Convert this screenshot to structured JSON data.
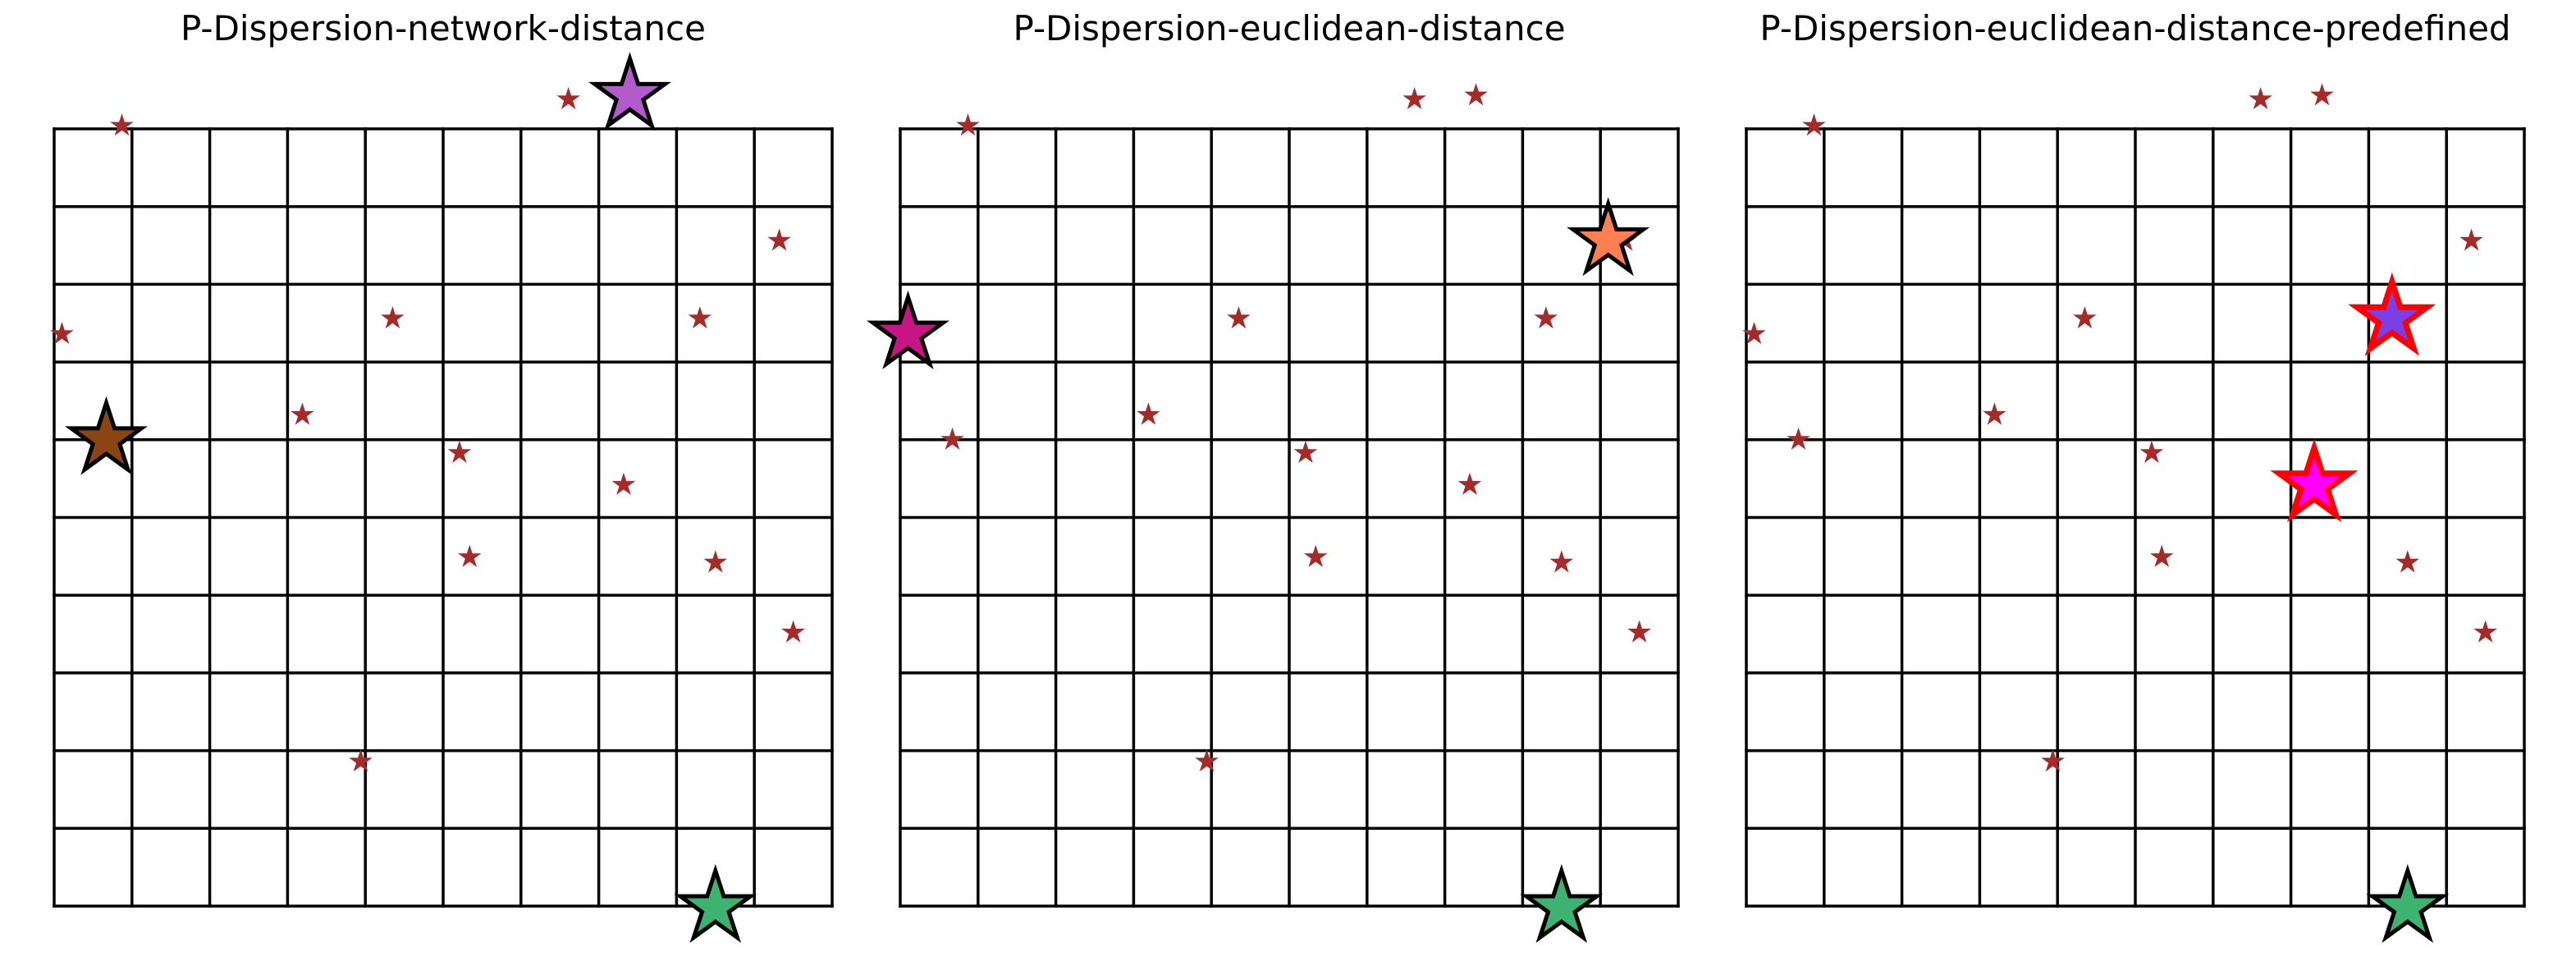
{
  "chart_data": [
    {
      "type": "scatter",
      "title": "P-Dispersion-network-distance",
      "xlim": [
        0,
        10
      ],
      "ylim": [
        0,
        10
      ],
      "grid": true,
      "series": [
        {
          "marker": "small-star",
          "color": "#a52a2a",
          "points": [
            [
              0.87,
              10.04
            ],
            [
              6.61,
              10.38
            ],
            [
              9.32,
              8.56
            ],
            [
              0.1,
              7.36
            ],
            [
              4.35,
              7.56
            ],
            [
              8.3,
              7.56
            ],
            [
              3.19,
              6.32
            ],
            [
              5.21,
              5.83
            ],
            [
              7.32,
              5.42
            ],
            [
              5.34,
              4.49
            ],
            [
              8.5,
              4.42
            ],
            [
              9.5,
              3.52
            ],
            [
              3.94,
              1.86
            ]
          ]
        },
        {
          "marker": "large-star",
          "points": [
            {
              "x": 7.4,
              "y": 10.43,
              "color": "#b35bcc",
              "edge": "#000000"
            },
            {
              "x": 0.67,
              "y": 6.0,
              "color": "#8b4513",
              "edge": "#000000"
            },
            {
              "x": 8.5,
              "y": -0.02,
              "color": "#3cb371",
              "edge": "#000000"
            }
          ]
        }
      ]
    },
    {
      "type": "scatter",
      "title": "P-Dispersion-euclidean-distance",
      "xlim": [
        0,
        10
      ],
      "ylim": [
        0,
        10
      ],
      "grid": true,
      "series": [
        {
          "marker": "small-star",
          "color": "#a52a2a",
          "points": [
            [
              0.87,
              10.04
            ],
            [
              6.61,
              10.38
            ],
            [
              7.4,
              10.43
            ],
            [
              9.32,
              8.56
            ],
            [
              0.1,
              7.36
            ],
            [
              4.35,
              7.56
            ],
            [
              8.3,
              7.56
            ],
            [
              3.19,
              6.32
            ],
            [
              0.67,
              6.0
            ],
            [
              5.21,
              5.83
            ],
            [
              7.32,
              5.42
            ],
            [
              5.34,
              4.49
            ],
            [
              8.5,
              4.42
            ],
            [
              9.5,
              3.52
            ],
            [
              3.94,
              1.86
            ]
          ]
        },
        {
          "marker": "large-star",
          "points": [
            {
              "x": 9.1,
              "y": 8.56,
              "color": "#ff7f50",
              "edge": "#000000"
            },
            {
              "x": 0.1,
              "y": 7.36,
              "color": "#c71585",
              "edge": "#000000"
            },
            {
              "x": 8.5,
              "y": -0.02,
              "color": "#3cb371",
              "edge": "#000000"
            }
          ]
        }
      ]
    },
    {
      "type": "scatter",
      "title": "P-Dispersion-euclidean-distance-predefined",
      "xlim": [
        0,
        10
      ],
      "ylim": [
        0,
        10
      ],
      "grid": true,
      "series": [
        {
          "marker": "small-star",
          "color": "#a52a2a",
          "points": [
            [
              0.87,
              10.04
            ],
            [
              6.61,
              10.38
            ],
            [
              7.4,
              10.43
            ],
            [
              9.32,
              8.56
            ],
            [
              0.1,
              7.36
            ],
            [
              4.35,
              7.56
            ],
            [
              3.19,
              6.32
            ],
            [
              0.67,
              6.0
            ],
            [
              5.21,
              5.83
            ],
            [
              5.34,
              4.49
            ],
            [
              8.5,
              4.42
            ],
            [
              9.5,
              3.52
            ],
            [
              3.94,
              1.86
            ]
          ]
        },
        {
          "marker": "large-star",
          "points": [
            {
              "x": 8.3,
              "y": 7.56,
              "color": "#7b3fe4",
              "edge": "#ff0000"
            },
            {
              "x": 7.3,
              "y": 5.42,
              "color": "#ff00ff",
              "edge": "#ff0000"
            },
            {
              "x": 8.5,
              "y": -0.02,
              "color": "#3cb371",
              "edge": "#000000"
            }
          ]
        }
      ]
    }
  ]
}
